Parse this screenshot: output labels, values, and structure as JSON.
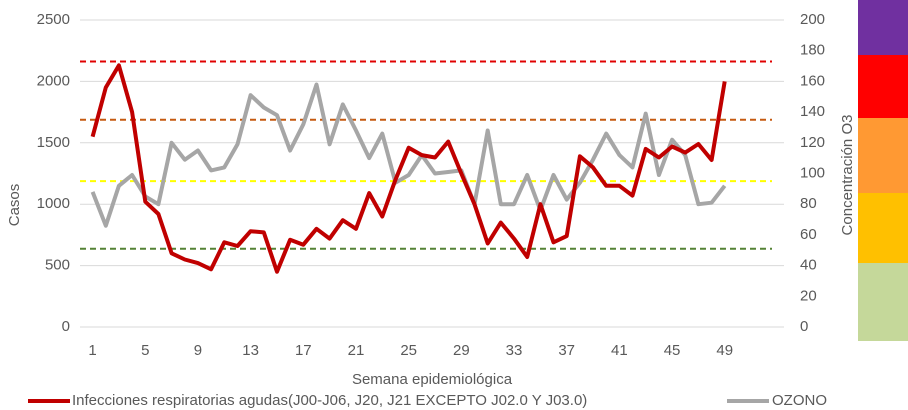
{
  "chart_data": {
    "type": "line",
    "x_label": "Semana epidemiológica",
    "y_label": "Casos",
    "y2_label": "Concentración O3",
    "x": [
      1,
      2,
      3,
      4,
      5,
      6,
      7,
      8,
      9,
      10,
      11,
      12,
      13,
      14,
      15,
      16,
      17,
      18,
      19,
      20,
      21,
      22,
      23,
      24,
      25,
      26,
      27,
      28,
      29,
      30,
      31,
      32,
      33,
      34,
      35,
      36,
      37,
      38,
      39,
      40,
      41,
      42,
      43,
      44,
      45,
      46,
      47,
      48,
      49
    ],
    "xlim": [
      0.5,
      53.5
    ],
    "xticks": [
      1,
      5,
      9,
      13,
      17,
      21,
      25,
      29,
      33,
      37,
      41,
      45,
      49
    ],
    "ylim": [
      0,
      2500
    ],
    "yticks": [
      0,
      500,
      1000,
      1500,
      2000,
      2500
    ],
    "y2lim": [
      0,
      200
    ],
    "y2ticks": [
      0,
      20,
      40,
      60,
      80,
      100,
      120,
      140,
      160,
      180,
      200
    ],
    "grid": true,
    "legend": "bottom",
    "series": [
      {
        "name": "Infecciones respiratorias agudas(J00-J06, J20, J21 EXCEPTO J02.0 Y J03.0)",
        "color": "#c00000",
        "values": [
          1550,
          1950,
          2130,
          1750,
          1020,
          920,
          600,
          550,
          520,
          470,
          690,
          660,
          780,
          770,
          450,
          710,
          670,
          800,
          720,
          870,
          800,
          1090,
          900,
          1200,
          1460,
          1400,
          1380,
          1510,
          1250,
          1000,
          680,
          850,
          720,
          570,
          1000,
          690,
          740,
          1390,
          1300,
          1150,
          1150,
          1070,
          1450,
          1380,
          1470,
          1420,
          1490,
          1360,
          2000
        ]
      },
      {
        "name": "OZONO",
        "color": "#a6a6a6",
        "axis": "y2",
        "values": [
          88,
          66,
          92,
          99,
          85,
          80,
          120,
          109,
          115,
          102,
          104,
          119,
          151,
          143,
          138,
          115,
          132,
          158,
          119,
          145,
          128,
          110,
          126,
          94,
          99,
          112,
          100,
          101,
          102,
          80,
          128,
          80,
          80,
          99,
          76,
          99,
          83,
          94,
          109,
          126,
          112,
          104,
          139,
          99,
          122,
          112,
          80,
          81,
          92
        ]
      }
    ],
    "reference_lines": [
      {
        "value": 173,
        "color": "#e00000",
        "axis": "y2"
      },
      {
        "value": 135,
        "color": "#c55a11",
        "axis": "y2"
      },
      {
        "value": 95,
        "color": "#ffff00",
        "axis": "y2"
      },
      {
        "value": 51,
        "color": "#548235",
        "axis": "y2"
      }
    ]
  }
}
